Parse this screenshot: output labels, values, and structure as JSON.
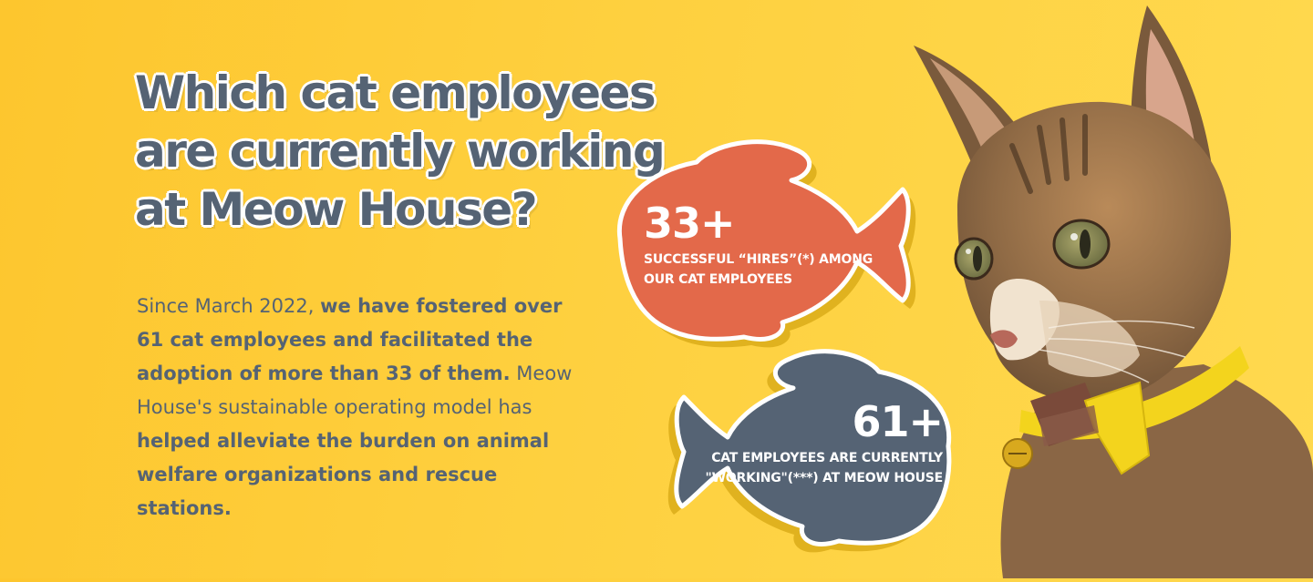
{
  "headline": {
    "line1": "Which cat employees",
    "line2": "are currently working",
    "line3": "at Meow House?"
  },
  "body": {
    "l1_normal": "Since March 2022, ",
    "l1_bold": "we have fostered over",
    "l2_bold": "61 cat employees and facilitated the",
    "l3_bold": "adoption of more than 33 of them.",
    "l3_normal": " Meow",
    "l4_normal": "House's sustainable operating model has",
    "l5_bold": "helped alleviate the burden on animal",
    "l6_bold": "welfare organizations and rescue",
    "l7_bold": "stations."
  },
  "stats": {
    "hires": {
      "number": "33+",
      "label_line1": "SUCCESSFUL “HIRES”(*) AMONG",
      "label_line2": "OUR CAT EMPLOYEES",
      "color": "#e3694a"
    },
    "working": {
      "number": "61+",
      "label_line1": "CAT EMPLOYEES ARE CURRENTLY",
      "label_line2": "\"WORKING\"(***) AT MEOW HOUSE",
      "color": "#556374"
    }
  },
  "colors": {
    "background": "#fec93a",
    "text": "#556374",
    "accent_orange": "#e3694a",
    "fish_shadow": "#e0b21f"
  },
  "photo": {
    "subject": "cat-photo"
  }
}
